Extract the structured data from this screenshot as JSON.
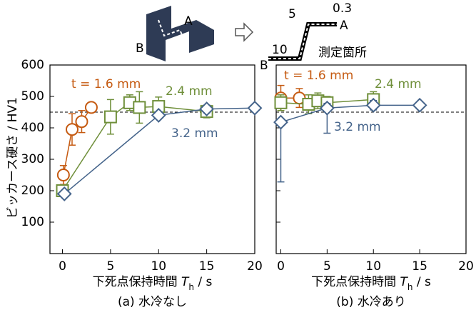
{
  "chart_data": [
    {
      "type": "line",
      "xlabel": [
        "下死点保持時間 ",
        "T",
        "h",
        " / s"
      ],
      "ylabel": "ビッカース硬さ / HV1",
      "caption": "(a) 水冷なし",
      "xlim": [
        -1.3,
        20
      ],
      "xticks": [
        0,
        5,
        10,
        15,
        20
      ],
      "ylim": [
        0,
        600
      ],
      "yticks": [
        100,
        200,
        300,
        400,
        500,
        600
      ],
      "show_ytick_labels": true,
      "hline": 450,
      "series": [
        {
          "name": "t = 1.6 mm",
          "color": "#c55a11",
          "marker": "circle",
          "x": [
            0.1,
            1,
            2,
            3
          ],
          "values": [
            250,
            395,
            420,
            465
          ],
          "errors": [
            30,
            50,
            35,
            15
          ]
        },
        {
          "name": "2.4 mm",
          "color": "#6f8f3a",
          "marker": "square",
          "x": [
            0,
            5,
            7,
            8,
            10,
            15
          ],
          "values": [
            200,
            435,
            480,
            465,
            468,
            452
          ],
          "errors": [
            10,
            55,
            25,
            50,
            30,
            20
          ]
        },
        {
          "name": "3.2 mm",
          "color": "#44638a",
          "marker": "diamond",
          "x": [
            0.2,
            10,
            15,
            20
          ],
          "values": [
            190,
            440,
            460,
            463
          ],
          "errors": [
            8,
            10,
            12,
            8
          ]
        }
      ]
    },
    {
      "type": "line",
      "xlabel": [
        "下死点保持時間 ",
        "T",
        "h",
        " / s"
      ],
      "caption": "(b) 水冷あり",
      "xlim": [
        -0.5,
        20
      ],
      "xticks": [
        0,
        5,
        10,
        15,
        20
      ],
      "ylim": [
        0,
        600
      ],
      "yticks": [
        100,
        200,
        300,
        400,
        500,
        600
      ],
      "show_ytick_labels": false,
      "hline": 450,
      "series": [
        {
          "name": "t = 1.6 mm",
          "color": "#c55a11",
          "marker": "circle",
          "x": [
            0,
            2
          ],
          "values": [
            495,
            495
          ],
          "errors": [
            40,
            30
          ]
        },
        {
          "name": "2.4 mm",
          "color": "#6f8f3a",
          "marker": "square",
          "x": [
            0,
            3,
            4,
            5,
            10
          ],
          "values": [
            480,
            475,
            486,
            480,
            490
          ],
          "errors": [
            25,
            30,
            25,
            20,
            25
          ]
        },
        {
          "name": "3.2 mm",
          "color": "#44638a",
          "marker": "diamond",
          "x": [
            0,
            5,
            10,
            15
          ],
          "values": [
            418,
            463,
            472,
            472
          ],
          "errors": [
            [
              190,
              10
            ],
            [
              80,
              15
            ],
            [
              15,
              15
            ],
            [
              8,
              8
            ]
          ]
        }
      ]
    }
  ],
  "inset": {
    "labels": [
      "A",
      "B",
      "5",
      "0.3",
      "A",
      "10",
      "B",
      "測定箇所"
    ]
  }
}
